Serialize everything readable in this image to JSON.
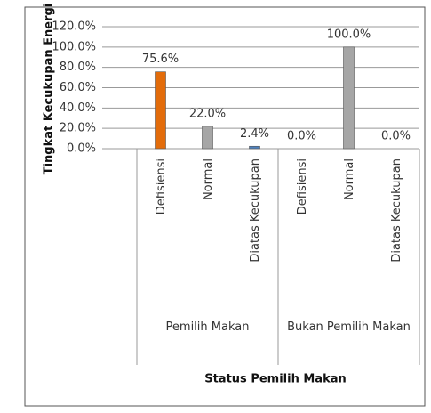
{
  "chart_data": {
    "type": "bar",
    "y_axis_label": "Tingkat Kecukupan Energi",
    "x_axis_label": "Status Pemilih Makan",
    "groups": [
      {
        "label": "Pemilih Makan",
        "categories": [
          "Defisiensi",
          "Normal",
          "Diatas Kecukupan"
        ]
      },
      {
        "label": "Bukan Pemilih Makan",
        "categories": [
          "Defisiensi",
          "Normal",
          "Diatas Kecukupan"
        ]
      }
    ],
    "values": [
      75.6,
      22.0,
      2.4,
      0.0,
      100.0,
      0.0
    ],
    "value_labels": [
      "75.6%",
      "22.0%",
      "2.4%",
      "0.0%",
      "100.0%",
      "0.0%"
    ],
    "colors": [
      "#e36c0a",
      "#a6a6a6",
      "#4f81bd",
      "#a6a6a6",
      "#a6a6a6",
      "#a6a6a6"
    ],
    "ylim": [
      0,
      120
    ],
    "yticks": [
      {
        "value": 0,
        "label": "0.0%"
      },
      {
        "value": 20,
        "label": "20.0%"
      },
      {
        "value": 40,
        "label": "40.0%"
      },
      {
        "value": 60,
        "label": "60.0%"
      },
      {
        "value": 80,
        "label": "80.0%"
      },
      {
        "value": 100,
        "label": "100.0%"
      },
      {
        "value": 120,
        "label": "120.0%"
      }
    ],
    "grid": true
  }
}
